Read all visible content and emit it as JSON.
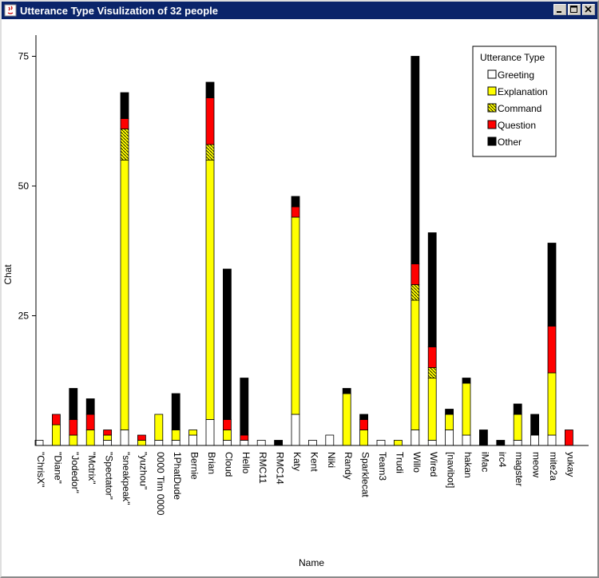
{
  "window": {
    "title": "Utterance Type Visulization of 32 people"
  },
  "legend": {
    "title": "Utterance Type"
  },
  "colors": {
    "Greeting": "#ffffff",
    "Explanation": "#ffff00",
    "Command": "#ffff00",
    "Question": "#ff0000",
    "Other": "#000000"
  },
  "chart_data": {
    "type": "bar",
    "subtype": "stacked-unit-blocks",
    "ylabel": "Chat",
    "xlabel": "Name",
    "ylim": [
      0,
      80
    ],
    "yticks": [
      25,
      50,
      75
    ],
    "legend_position": "top-right",
    "series_names": [
      "Greeting",
      "Explanation",
      "Command",
      "Question",
      "Other"
    ],
    "categories": [
      "\"ChrisX\"",
      "\"Diane\"",
      "\"Jodedor\"",
      "\"Mctrix\"",
      "\"Spectator\"",
      "\"sneakpeak\"",
      "\"yuzhou\"",
      "0000 Tim 0000",
      "1PhatDude",
      "Bernie",
      "Brian",
      "Cloud",
      "Hello",
      "RMC11",
      "RMC14",
      "Katy",
      "Kent",
      "Niki",
      "Randy",
      "Sparklecat",
      "Team3",
      "Trudi",
      "Willo",
      "Wired",
      "[navibot]",
      "hakan",
      "iMac",
      "irc4",
      "magster",
      "meow",
      "mite2a",
      "yukay"
    ],
    "values": {
      "Greeting": [
        1,
        0,
        0,
        0,
        1,
        3,
        0,
        1,
        1,
        2,
        5,
        1,
        1,
        1,
        0,
        6,
        1,
        2,
        0,
        0,
        1,
        0,
        3,
        1,
        3,
        2,
        0,
        0,
        1,
        2,
        2,
        0
      ],
      "Explanation": [
        0,
        4,
        2,
        3,
        1,
        52,
        1,
        5,
        2,
        1,
        50,
        2,
        0,
        0,
        0,
        38,
        0,
        0,
        10,
        3,
        0,
        1,
        25,
        12,
        3,
        10,
        0,
        0,
        5,
        0,
        12,
        0
      ],
      "Command": [
        0,
        0,
        0,
        0,
        0,
        6,
        0,
        0,
        0,
        0,
        3,
        0,
        0,
        0,
        0,
        0,
        0,
        0,
        0,
        0,
        0,
        0,
        3,
        2,
        0,
        0,
        0,
        0,
        0,
        0,
        0,
        0
      ],
      "Question": [
        0,
        2,
        3,
        3,
        1,
        2,
        1,
        0,
        0,
        0,
        9,
        2,
        1,
        0,
        0,
        2,
        0,
        0,
        0,
        2,
        0,
        0,
        4,
        4,
        0,
        0,
        0,
        0,
        0,
        0,
        9,
        3
      ],
      "Other": [
        0,
        0,
        6,
        3,
        0,
        5,
        0,
        0,
        7,
        0,
        3,
        29,
        11,
        0,
        1,
        2,
        0,
        0,
        1,
        1,
        0,
        0,
        40,
        22,
        1,
        1,
        3,
        1,
        2,
        4,
        16,
        0
      ]
    }
  }
}
